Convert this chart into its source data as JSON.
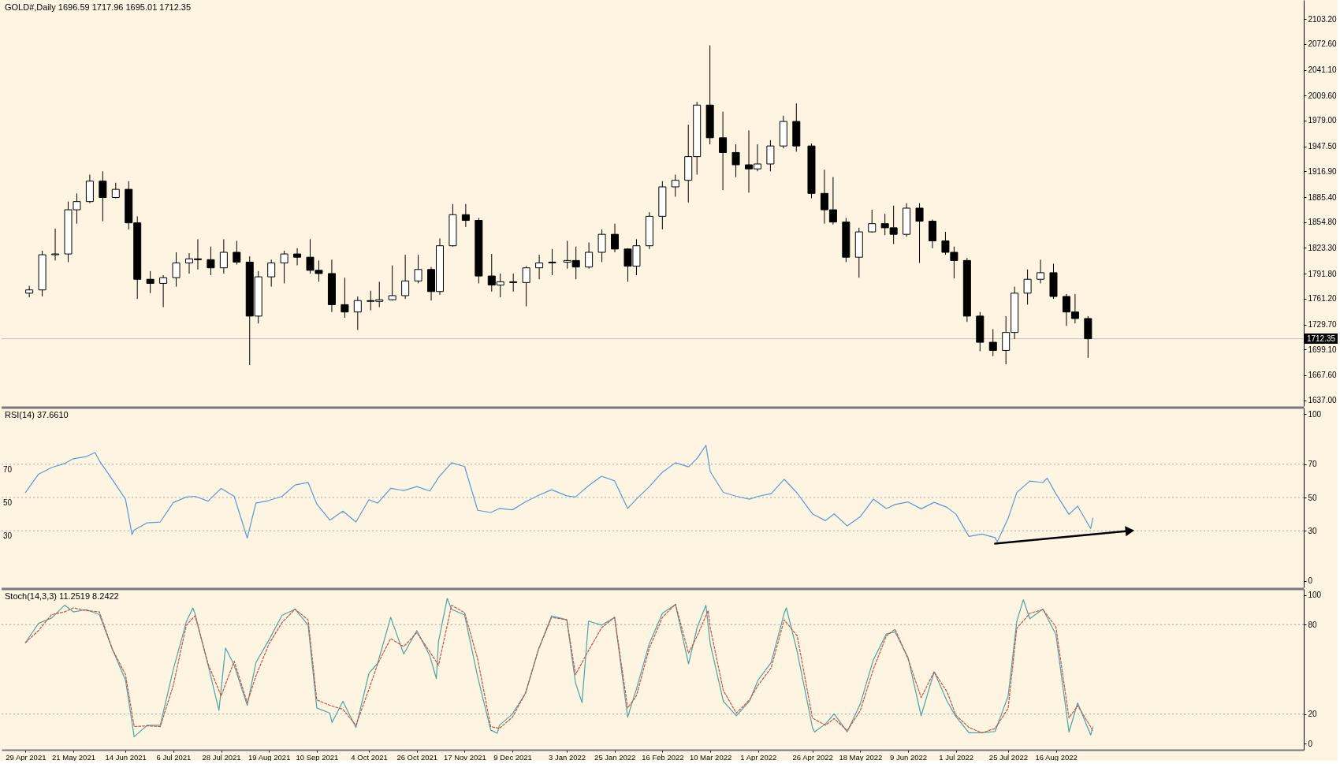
{
  "chart_data": [
    {
      "type": "candlestick",
      "title": "GOLD#,Daily 1696.59 1717.96 1695.01 1712.35",
      "color": "#000000",
      "x": [
        "2021-04-29",
        "2021-05-05",
        "2021-05-11",
        "2021-05-17",
        "2021-05-21",
        "2021-05-27",
        "2021-06-02",
        "2021-06-08",
        "2021-06-14",
        "2021-06-18",
        "2021-06-24",
        "2021-06-30",
        "2021-07-06",
        "2021-07-12",
        "2021-07-16",
        "2021-07-22",
        "2021-07-28",
        "2021-08-03",
        "2021-08-09",
        "2021-08-13",
        "2021-08-19",
        "2021-08-25",
        "2021-08-31",
        "2021-09-06",
        "2021-09-10",
        "2021-09-16",
        "2021-09-22",
        "2021-09-28",
        "2021-10-04",
        "2021-10-08",
        "2021-10-14",
        "2021-10-20",
        "2021-10-26",
        "2021-11-01",
        "2021-11-05",
        "2021-11-11",
        "2021-11-17",
        "2021-11-23",
        "2021-11-29",
        "2021-12-03",
        "2021-12-09",
        "2021-12-15",
        "2021-12-21",
        "2021-12-27",
        "2022-01-03",
        "2022-01-07",
        "2022-01-13",
        "2022-01-19",
        "2022-01-25",
        "2022-01-31",
        "2022-02-04",
        "2022-02-10",
        "2022-02-16",
        "2022-02-22",
        "2022-02-28",
        "2022-03-04",
        "2022-03-10",
        "2022-03-16",
        "2022-03-22",
        "2022-03-28",
        "2022-04-01",
        "2022-04-07",
        "2022-04-13",
        "2022-04-19",
        "2022-04-26",
        "2022-05-02",
        "2022-05-06",
        "2022-05-12",
        "2022-05-18",
        "2022-05-24",
        "2022-05-30",
        "2022-06-03",
        "2022-06-09",
        "2022-06-15",
        "2022-06-21",
        "2022-06-27",
        "2022-07-01",
        "2022-07-07",
        "2022-07-13",
        "2022-07-19",
        "2022-07-25",
        "2022-07-29",
        "2022-08-04",
        "2022-08-10",
        "2022-08-16",
        "2022-08-22",
        "2022-08-26",
        "2022-09-01"
      ],
      "ohlc": [
        [
          1768,
          1777,
          1763,
          1772
        ],
        [
          1772,
          1820,
          1764,
          1815
        ],
        [
          1815,
          1847,
          1808,
          1816
        ],
        [
          1816,
          1880,
          1806,
          1870
        ],
        [
          1870,
          1890,
          1853,
          1880
        ],
        [
          1880,
          1913,
          1878,
          1905
        ],
        [
          1905,
          1917,
          1856,
          1885
        ],
        [
          1885,
          1903,
          1884,
          1895
        ],
        [
          1895,
          1905,
          1846,
          1854
        ],
        [
          1854,
          1862,
          1761,
          1785
        ],
        [
          1785,
          1795,
          1768,
          1780
        ],
        [
          1780,
          1790,
          1751,
          1787
        ],
        [
          1787,
          1818,
          1776,
          1805
        ],
        [
          1805,
          1817,
          1792,
          1810
        ],
        [
          1810,
          1834,
          1797,
          1809
        ],
        [
          1809,
          1825,
          1790,
          1799
        ],
        [
          1799,
          1834,
          1792,
          1818
        ],
        [
          1818,
          1832,
          1803,
          1806
        ],
        [
          1806,
          1813,
          1680,
          1740
        ],
        [
          1740,
          1795,
          1731,
          1788
        ],
        [
          1788,
          1809,
          1776,
          1805
        ],
        [
          1805,
          1820,
          1780,
          1816
        ],
        [
          1816,
          1823,
          1802,
          1812
        ],
        [
          1812,
          1834,
          1792,
          1796
        ],
        [
          1796,
          1808,
          1782,
          1792
        ],
        [
          1792,
          1809,
          1745,
          1754
        ],
        [
          1754,
          1787,
          1738,
          1745
        ],
        [
          1745,
          1764,
          1723,
          1759
        ],
        [
          1759,
          1771,
          1747,
          1758
        ],
        [
          1758,
          1782,
          1751,
          1760
        ],
        [
          1760,
          1802,
          1759,
          1765
        ],
        [
          1765,
          1815,
          1761,
          1783
        ],
        [
          1783,
          1815,
          1780,
          1797
        ],
        [
          1797,
          1800,
          1759,
          1770
        ],
        [
          1770,
          1835,
          1766,
          1826
        ],
        [
          1826,
          1877,
          1825,
          1864
        ],
        [
          1864,
          1877,
          1849,
          1857
        ],
        [
          1857,
          1860,
          1780,
          1789
        ],
        [
          1789,
          1816,
          1770,
          1778
        ],
        [
          1778,
          1792,
          1763,
          1782
        ],
        [
          1782,
          1792,
          1770,
          1781
        ],
        [
          1781,
          1801,
          1752,
          1799
        ],
        [
          1799,
          1815,
          1785,
          1805
        ],
        [
          1805,
          1822,
          1790,
          1806
        ],
        [
          1806,
          1832,
          1798,
          1808
        ],
        [
          1808,
          1825,
          1785,
          1800
        ],
        [
          1800,
          1830,
          1798,
          1818
        ],
        [
          1818,
          1846,
          1806,
          1840
        ],
        [
          1840,
          1853,
          1818,
          1822
        ],
        [
          1822,
          1823,
          1782,
          1801
        ],
        [
          1801,
          1834,
          1790,
          1826
        ],
        [
          1826,
          1867,
          1822,
          1862
        ],
        [
          1862,
          1905,
          1846,
          1898
        ],
        [
          1898,
          1913,
          1886,
          1906
        ],
        [
          1906,
          1974,
          1879,
          1935
        ],
        [
          1935,
          2002,
          1913,
          1998
        ],
        [
          1998,
          2071,
          1950,
          1958
        ],
        [
          1958,
          1990,
          1894,
          1940
        ],
        [
          1940,
          1950,
          1910,
          1925
        ],
        [
          1925,
          1967,
          1891,
          1920
        ],
        [
          1920,
          1950,
          1917,
          1926
        ],
        [
          1926,
          1955,
          1917,
          1948
        ],
        [
          1948,
          1985,
          1945,
          1978
        ],
        [
          1978,
          2000,
          1941,
          1948
        ],
        [
          1948,
          1951,
          1884,
          1890
        ],
        [
          1890,
          1919,
          1853,
          1870
        ],
        [
          1870,
          1910,
          1852,
          1855
        ],
        [
          1855,
          1860,
          1806,
          1812
        ],
        [
          1812,
          1848,
          1787,
          1843
        ],
        [
          1843,
          1870,
          1842,
          1853
        ],
        [
          1853,
          1865,
          1839,
          1848
        ],
        [
          1848,
          1875,
          1828,
          1840
        ],
        [
          1840,
          1878,
          1837,
          1872
        ],
        [
          1872,
          1878,
          1805,
          1856
        ],
        [
          1856,
          1858,
          1823,
          1832
        ],
        [
          1832,
          1843,
          1815,
          1818
        ],
        [
          1818,
          1825,
          1786,
          1808
        ],
        [
          1808,
          1811,
          1733,
          1740
        ],
        [
          1740,
          1745,
          1697,
          1708
        ],
        [
          1708,
          1724,
          1691,
          1698
        ],
        [
          1698,
          1740,
          1681,
          1720
        ],
        [
          1720,
          1776,
          1712,
          1768
        ],
        [
          1768,
          1797,
          1754,
          1785
        ],
        [
          1785,
          1809,
          1780,
          1793
        ],
        [
          1793,
          1804,
          1761,
          1764
        ],
        [
          1764,
          1767,
          1728,
          1745
        ],
        [
          1745,
          1767,
          1731,
          1737
        ],
        [
          1737,
          1740,
          1689,
          1712.35
        ]
      ],
      "xlim": [
        "2021-04-18",
        "2022-12-08"
      ],
      "ylim": [
        1630,
        2126.5
      ],
      "yticks": [
        {
          "value": 2103.2,
          "label": "2103.20"
        },
        {
          "value": 2072.6,
          "label": "2072.60"
        },
        {
          "value": 2041.1,
          "label": "2041.10"
        },
        {
          "value": 2009.6,
          "label": "2009.60"
        },
        {
          "value": 1979,
          "label": "1979.00"
        },
        {
          "value": 1947.5,
          "label": "1947.50"
        },
        {
          "value": 1916.9,
          "label": "1916.90"
        },
        {
          "value": 1885.4,
          "label": "1885.40"
        },
        {
          "value": 1854.8,
          "label": "1854.80"
        },
        {
          "value": 1823.3,
          "label": "1823.30"
        },
        {
          "value": 1791.8,
          "label": "1791.80"
        },
        {
          "value": 1761.2,
          "label": "1761.20"
        },
        {
          "value": 1729.7,
          "label": "1729.70"
        },
        {
          "value": 1699.1,
          "label": "1699.10"
        },
        {
          "value": 1667.6,
          "label": "1667.60"
        },
        {
          "value": 1637,
          "label": "1637.00"
        }
      ],
      "tick_labels": "y",
      "ref_lines": [
        {
          "axis": "y",
          "value": 1712.35,
          "label": "1712.35",
          "color": "#c4c4c4",
          "line_style": "solid"
        }
      ]
    },
    {
      "type": "line",
      "title": "RSI(14) 37.6610",
      "series": [
        {
          "color": "#5a9ad6",
          "x": [
            "2021-04-29",
            "2021-05-05",
            "2021-05-11",
            "2021-05-17",
            "2021-05-21",
            "2021-05-27",
            "2021-05-31",
            "2021-06-02",
            "2021-06-08",
            "2021-06-14",
            "2021-06-17",
            "2021-06-18",
            "2021-06-24",
            "2021-06-30",
            "2021-07-06",
            "2021-07-12",
            "2021-07-16",
            "2021-07-22",
            "2021-07-28",
            "2021-08-03",
            "2021-08-09",
            "2021-08-13",
            "2021-08-19",
            "2021-08-25",
            "2021-08-31",
            "2021-09-06",
            "2021-09-10",
            "2021-09-16",
            "2021-09-22",
            "2021-09-28",
            "2021-10-04",
            "2021-10-08",
            "2021-10-14",
            "2021-10-20",
            "2021-10-26",
            "2021-11-01",
            "2021-11-05",
            "2021-11-11",
            "2021-11-17",
            "2021-11-23",
            "2021-11-29",
            "2021-12-03",
            "2021-12-09",
            "2021-12-15",
            "2021-12-21",
            "2021-12-27",
            "2022-01-03",
            "2022-01-07",
            "2022-01-13",
            "2022-01-19",
            "2022-01-25",
            "2022-01-31",
            "2022-02-04",
            "2022-02-10",
            "2022-02-16",
            "2022-02-22",
            "2022-02-28",
            "2022-03-04",
            "2022-03-08",
            "2022-03-10",
            "2022-03-16",
            "2022-03-22",
            "2022-03-28",
            "2022-04-01",
            "2022-04-07",
            "2022-04-13",
            "2022-04-19",
            "2022-04-26",
            "2022-05-02",
            "2022-05-06",
            "2022-05-12",
            "2022-05-18",
            "2022-05-24",
            "2022-05-30",
            "2022-06-03",
            "2022-06-09",
            "2022-06-15",
            "2022-06-21",
            "2022-06-27",
            "2022-07-01",
            "2022-07-07",
            "2022-07-13",
            "2022-07-19",
            "2022-07-20",
            "2022-07-25",
            "2022-07-29",
            "2022-08-04",
            "2022-08-10",
            "2022-08-12",
            "2022-08-16",
            "2022-08-22",
            "2022-08-26",
            "2022-09-01",
            "2022-09-02"
          ],
          "values": [
            53,
            64,
            68,
            70.4,
            73.3,
            74.6,
            77,
            72,
            60.7,
            49,
            27.7,
            30.5,
            34.8,
            35.3,
            47,
            50.3,
            50.7,
            47.8,
            55.5,
            50.7,
            25.6,
            46.6,
            48.2,
            50.7,
            57.5,
            59.1,
            46.1,
            36.4,
            41.8,
            35.3,
            48.7,
            46.6,
            55.5,
            54.2,
            56.6,
            53.9,
            62,
            70.9,
            68.6,
            42.3,
            41,
            43.4,
            42.6,
            47.4,
            51.3,
            54.7,
            51,
            50.3,
            57.1,
            62.8,
            60,
            43.4,
            49,
            56.6,
            65.2,
            70.9,
            68.4,
            73.6,
            81.4,
            65.5,
            53.1,
            50.7,
            49,
            50.7,
            52.3,
            61,
            52.6,
            40.2,
            36.1,
            40.2,
            32.9,
            38.5,
            49,
            43.4,
            45.8,
            47.3,
            43.2,
            47.1,
            44,
            40,
            26.6,
            28,
            25.9,
            23.4,
            37.4,
            53,
            59.9,
            59,
            61.6,
            52.2,
            39.9,
            44.8,
            31.3,
            37.661
          ]
        },
        {
          "color": "#000000",
          "x": [
            "2022-07-19",
            "2022-09-19"
          ],
          "values": [
            22.3,
            30
          ],
          "marker": "triangle"
        }
      ],
      "xlim": [
        "2021-04-18",
        "2022-12-08"
      ],
      "ylim": [
        -4,
        104
      ],
      "yticks": [
        0,
        30,
        50,
        70,
        100
      ],
      "tick_labels": "y",
      "ref_lines": [
        {
          "axis": "y",
          "value": 70,
          "label": "70",
          "color": "#aaaaaa",
          "line_style": "dotted"
        },
        {
          "axis": "y",
          "value": 50,
          "label": "50",
          "color": "#aaaaaa",
          "line_style": "dotted"
        },
        {
          "axis": "y",
          "value": 30,
          "label": "30",
          "color": "#aaaaaa",
          "line_style": "dotted"
        }
      ]
    },
    {
      "type": "line",
      "title": "Stoch(14,3,3) 11.2519 8.2422",
      "series": [
        {
          "color": "#4aa6a0",
          "line_style": "solid",
          "x": [
            "2021-04-29",
            "2021-05-05",
            "2021-05-11",
            "2021-05-17",
            "2021-05-21",
            "2021-05-27",
            "2021-06-02",
            "2021-06-08",
            "2021-06-14",
            "2021-06-18",
            "2021-06-24",
            "2021-06-30",
            "2021-07-06",
            "2021-07-12",
            "2021-07-15",
            "2021-07-16",
            "2021-07-22",
            "2021-07-27",
            "2021-07-28",
            "2021-07-30",
            "2021-08-03",
            "2021-08-09",
            "2021-08-13",
            "2021-08-19",
            "2021-08-25",
            "2021-08-31",
            "2021-09-06",
            "2021-09-10",
            "2021-09-16",
            "2021-09-17",
            "2021-09-22",
            "2021-09-28",
            "2021-10-04",
            "2021-10-08",
            "2021-10-14",
            "2021-10-20",
            "2021-10-26",
            "2021-11-01",
            "2021-11-04",
            "2021-11-05",
            "2021-11-09",
            "2021-11-11",
            "2021-11-17",
            "2021-11-23",
            "2021-11-29",
            "2021-12-02",
            "2021-12-03",
            "2021-12-09",
            "2021-12-15",
            "2021-12-21",
            "2021-12-27",
            "2022-01-03",
            "2022-01-07",
            "2022-01-10",
            "2022-01-13",
            "2022-01-19",
            "2022-01-25",
            "2022-01-31",
            "2022-02-04",
            "2022-02-10",
            "2022-02-16",
            "2022-02-22",
            "2022-02-28",
            "2022-03-04",
            "2022-03-08",
            "2022-03-10",
            "2022-03-16",
            "2022-03-22",
            "2022-03-28",
            "2022-04-01",
            "2022-04-07",
            "2022-04-13",
            "2022-04-14",
            "2022-04-19",
            "2022-04-26",
            "2022-04-27",
            "2022-05-02",
            "2022-05-06",
            "2022-05-12",
            "2022-05-18",
            "2022-05-24",
            "2022-05-30",
            "2022-06-03",
            "2022-06-09",
            "2022-06-15",
            "2022-06-21",
            "2022-06-27",
            "2022-07-01",
            "2022-07-07",
            "2022-07-13",
            "2022-07-19",
            "2022-07-25",
            "2022-07-29",
            "2022-08-01",
            "2022-08-04",
            "2022-08-10",
            "2022-08-16",
            "2022-08-22",
            "2022-08-26",
            "2022-09-01",
            "2022-09-02"
          ],
          "values": [
            68,
            80.9,
            84.5,
            93.1,
            88.6,
            90.1,
            86.8,
            63.5,
            42.9,
            4.8,
            12.5,
            12.5,
            50.1,
            82,
            91.3,
            87.4,
            52.8,
            22.4,
            36.7,
            64.4,
            52.8,
            25.9,
            54.6,
            69.8,
            86.3,
            90.4,
            79.7,
            24.1,
            20.6,
            14.3,
            28.6,
            11,
            47.4,
            54.1,
            85,
            60.3,
            76.1,
            59.1,
            43.8,
            68.9,
            97.6,
            90.4,
            86.5,
            45,
            9.3,
            7.1,
            12.5,
            20,
            34,
            63.5,
            85.9,
            83.3,
            41,
            27.7,
            82.4,
            79.7,
            85,
            17.9,
            36.7,
            67.5,
            87.7,
            93.6,
            53.7,
            78.2,
            93.1,
            67.1,
            28.6,
            18.8,
            28.6,
            42.9,
            54.6,
            87.7,
            91.3,
            61.8,
            11,
            8,
            13.4,
            20.2,
            8,
            26.8,
            56.4,
            73.8,
            75.2,
            57.9,
            18.9,
            48.4,
            28.4,
            18.3,
            7.4,
            7.4,
            8.3,
            32,
            82.2,
            96.8,
            84,
            90.5,
            73.4,
            7.9,
            27.5,
            5.9,
            11.2519
          ]
        },
        {
          "color": "#c8504b",
          "line_style": "dashed",
          "x": [
            "2021-04-29",
            "2021-05-05",
            "2021-05-11",
            "2021-05-17",
            "2021-05-21",
            "2021-05-27",
            "2021-06-02",
            "2021-06-08",
            "2021-06-14",
            "2021-06-18",
            "2021-06-24",
            "2021-06-30",
            "2021-07-06",
            "2021-07-12",
            "2021-07-16",
            "2021-07-22",
            "2021-07-28",
            "2021-08-03",
            "2021-08-09",
            "2021-08-13",
            "2021-08-19",
            "2021-08-25",
            "2021-08-31",
            "2021-09-06",
            "2021-09-10",
            "2021-09-16",
            "2021-09-22",
            "2021-09-28",
            "2021-10-04",
            "2021-10-08",
            "2021-10-14",
            "2021-10-20",
            "2021-10-26",
            "2021-11-01",
            "2021-11-05",
            "2021-11-11",
            "2021-11-17",
            "2021-11-23",
            "2021-11-29",
            "2021-12-03",
            "2021-12-09",
            "2021-12-15",
            "2021-12-21",
            "2021-12-27",
            "2022-01-03",
            "2022-01-07",
            "2022-01-13",
            "2022-01-19",
            "2022-01-25",
            "2022-01-31",
            "2022-02-04",
            "2022-02-10",
            "2022-02-16",
            "2022-02-22",
            "2022-02-28",
            "2022-03-04",
            "2022-03-09",
            "2022-03-10",
            "2022-03-16",
            "2022-03-22",
            "2022-03-28",
            "2022-04-01",
            "2022-04-07",
            "2022-04-13",
            "2022-04-19",
            "2022-04-26",
            "2022-05-02",
            "2022-05-06",
            "2022-05-12",
            "2022-05-18",
            "2022-05-24",
            "2022-05-30",
            "2022-06-03",
            "2022-06-09",
            "2022-06-15",
            "2022-06-21",
            "2022-06-27",
            "2022-07-01",
            "2022-07-07",
            "2022-07-13",
            "2022-07-19",
            "2022-07-25",
            "2022-07-29",
            "2022-08-04",
            "2022-08-10",
            "2022-08-16",
            "2022-08-22",
            "2022-08-26",
            "2022-09-01",
            "2022-09-02"
          ],
          "values": [
            68,
            76.1,
            86.8,
            88.6,
            91.3,
            89.5,
            88.6,
            63.4,
            46.5,
            11.6,
            12.1,
            11.6,
            39.4,
            79.7,
            86,
            53.7,
            32.2,
            55.5,
            27.7,
            45.6,
            67.1,
            81.5,
            90.4,
            83.3,
            29.5,
            25.9,
            23.2,
            12.5,
            36.7,
            53.7,
            70.7,
            65.3,
            74.7,
            61.8,
            52.8,
            93.1,
            88,
            57,
            11.6,
            10.4,
            17.9,
            34,
            63.5,
            84.9,
            83.3,
            46.5,
            62.6,
            77.9,
            85,
            24.1,
            32.2,
            64.4,
            85,
            93.8,
            60.9,
            72.5,
            89.5,
            77.9,
            35.8,
            20.6,
            29.5,
            39.4,
            51,
            83.3,
            72.5,
            17.3,
            12.5,
            17,
            8.9,
            22.3,
            50.1,
            72.5,
            77,
            57,
            31.1,
            48.4,
            34.7,
            19.2,
            11,
            7.4,
            10.3,
            23.8,
            77.6,
            87.6,
            90.2,
            78.5,
            17.4,
            25.6,
            11.4,
            8.2422
          ]
        }
      ],
      "xlim": [
        "2021-04-18",
        "2022-12-08"
      ],
      "xticks": [
        {
          "value": "2021-04-29",
          "label": "29 Apr 2021"
        },
        {
          "value": "2021-05-21",
          "label": "21 May 2021"
        },
        {
          "value": "2021-06-14",
          "label": "14 Jun 2021"
        },
        {
          "value": "2021-07-06",
          "label": "6 Jul 2021"
        },
        {
          "value": "2021-07-28",
          "label": "28 Jul 2021"
        },
        {
          "value": "2021-08-19",
          "label": "19 Aug 2021"
        },
        {
          "value": "2021-09-10",
          "label": "10 Sep 2021"
        },
        {
          "value": "2021-10-04",
          "label": "4 Oct 2021"
        },
        {
          "value": "2021-10-26",
          "label": "26 Oct 2021"
        },
        {
          "value": "2021-11-17",
          "label": "17 Nov 2021"
        },
        {
          "value": "2021-12-09",
          "label": "9 Dec 2021"
        },
        {
          "value": "2022-01-03",
          "label": "3 Jan 2022"
        },
        {
          "value": "2022-01-25",
          "label": "25 Jan 2022"
        },
        {
          "value": "2022-02-16",
          "label": "16 Feb 2022"
        },
        {
          "value": "2022-03-10",
          "label": "10 Mar 2022"
        },
        {
          "value": "2022-04-01",
          "label": "1 Apr 2022"
        },
        {
          "value": "2022-04-26",
          "label": "26 Apr 2022"
        },
        {
          "value": "2022-05-18",
          "label": "18 May 2022"
        },
        {
          "value": "2022-06-09",
          "label": "9 Jun 2022"
        },
        {
          "value": "2022-07-01",
          "label": "1 Jul 2022"
        },
        {
          "value": "2022-07-25",
          "label": "25 Jul 2022"
        },
        {
          "value": "2022-08-16",
          "label": "16 Aug 2022"
        }
      ],
      "ylim": [
        -4,
        104
      ],
      "yticks": [
        0,
        20,
        80,
        100
      ],
      "ref_lines": [
        {
          "axis": "y",
          "value": 80,
          "color": "#aaaaaa",
          "line_style": "dotted"
        },
        {
          "axis": "y",
          "value": 20,
          "color": "#aaaaaa",
          "line_style": "dotted"
        }
      ]
    }
  ]
}
